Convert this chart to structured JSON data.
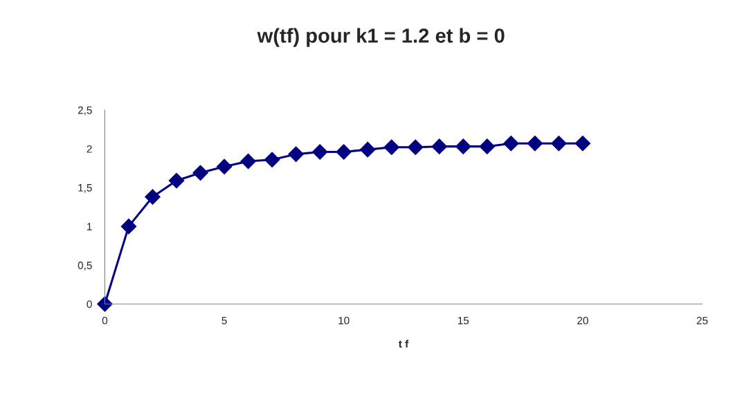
{
  "chart_data": {
    "type": "line",
    "title": "w(tf) pour k1 = 1.2 et b = 0",
    "xlabel": "t f",
    "series": [
      {
        "color": "#000080",
        "x": [
          0,
          1,
          2,
          3,
          4,
          5,
          6,
          7,
          8,
          9,
          10,
          11,
          12,
          13,
          14,
          15,
          16,
          17,
          18,
          19,
          20
        ],
        "values": [
          0,
          1.0,
          1.38,
          1.59,
          1.69,
          1.77,
          1.84,
          1.86,
          1.93,
          1.96,
          1.96,
          1.99,
          2.02,
          2.02,
          2.03,
          2.03,
          2.03,
          2.07,
          2.07,
          2.07,
          2.07
        ]
      }
    ],
    "marker": "diamond",
    "line_style": "solid",
    "grid": false,
    "legend": false,
    "xlim": [
      0,
      25
    ],
    "xticks": [
      0,
      5,
      10,
      15,
      20,
      25
    ],
    "ylim": [
      0,
      2.5
    ],
    "yticks": [
      0,
      {
        "value": 0.5,
        "label": "0,5"
      },
      1,
      {
        "value": 1.5,
        "label": "1,5"
      },
      2,
      {
        "value": 2.5,
        "label": "2,5"
      }
    ]
  }
}
